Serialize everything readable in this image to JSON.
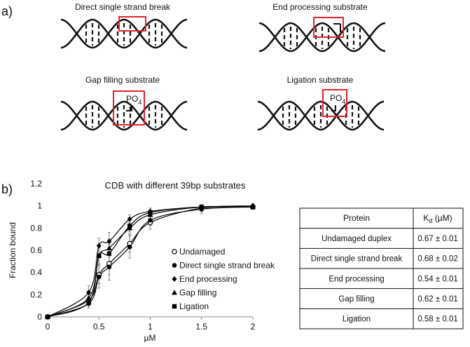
{
  "panel_a": {
    "label": "a)",
    "diagrams": [
      {
        "title": "Direct single strand break"
      },
      {
        "title": "End processing substrate"
      },
      {
        "title": "Gap filling substrate",
        "annotation": {
          "text": "PO",
          "subscript": "4"
        }
      },
      {
        "title": "Ligation substrate",
        "annotation": {
          "text": "PO",
          "subscript": "4"
        }
      }
    ]
  },
  "panel_b": {
    "label": "b)"
  },
  "chart_data": {
    "type": "scatter",
    "title": "CDB with different 39bp substrates",
    "x_label": "µM",
    "y_label": "Fraction bound",
    "x": [
      0,
      0.4,
      0.5,
      0.6,
      0.8,
      1,
      1.5,
      2
    ],
    "xlim": [
      0,
      2
    ],
    "xticks": [
      0,
      0.5,
      1,
      1.5,
      2
    ],
    "ylim": [
      0,
      1.2
    ],
    "yticks": [
      0,
      0.2,
      0.4,
      0.6,
      0.8,
      1,
      1.2
    ],
    "color": "#000000",
    "series": [
      {
        "name": "Undamaged",
        "marker": "open-circle",
        "values": [
          0,
          0.15,
          0.38,
          0.48,
          0.66,
          0.85,
          0.98,
          0.99
        ],
        "errors": [
          0,
          0.05,
          0.08,
          0.1,
          0.08,
          0.06,
          0.03,
          0.02
        ]
      },
      {
        "name": "Direct single strand break",
        "marker": "circle",
        "values": [
          0,
          0.12,
          0.36,
          0.45,
          0.63,
          0.87,
          0.97,
          0.99
        ],
        "errors": [
          0,
          0.04,
          0.1,
          0.12,
          0.1,
          0.05,
          0.04,
          0.02
        ]
      },
      {
        "name": "End processing",
        "marker": "diamond",
        "values": [
          0,
          0.22,
          0.64,
          0.68,
          0.88,
          0.95,
          0.99,
          1.0
        ],
        "errors": [
          0,
          0.06,
          0.07,
          0.08,
          0.04,
          0.03,
          0.02,
          0.02
        ]
      },
      {
        "name": "Gap filling",
        "marker": "triangle",
        "values": [
          0,
          0.17,
          0.55,
          0.62,
          0.8,
          0.92,
          0.99,
          0.99
        ],
        "errors": [
          0,
          0.05,
          0.08,
          0.08,
          0.05,
          0.04,
          0.02,
          0.02
        ]
      },
      {
        "name": "Ligation",
        "marker": "square",
        "values": [
          0,
          0.13,
          0.55,
          0.57,
          0.82,
          0.94,
          0.99,
          0.99
        ],
        "errors": [
          0,
          0.05,
          0.07,
          0.08,
          0.05,
          0.04,
          0.02,
          0.02
        ]
      }
    ]
  },
  "table": {
    "header": [
      "Protein",
      {
        "text": "K",
        "subscript": "d",
        "suffix": " (µM)"
      }
    ],
    "rows": [
      [
        "Undamaged duplex",
        "0.67 ± 0.01"
      ],
      [
        "Direct single strand break",
        "0.68 ± 0.02"
      ],
      [
        "End processing",
        "0.54 ± 0.01"
      ],
      [
        "Gap filling",
        "0.62 ± 0.01"
      ],
      [
        "Ligation",
        "0.58 ± 0.01"
      ]
    ]
  }
}
